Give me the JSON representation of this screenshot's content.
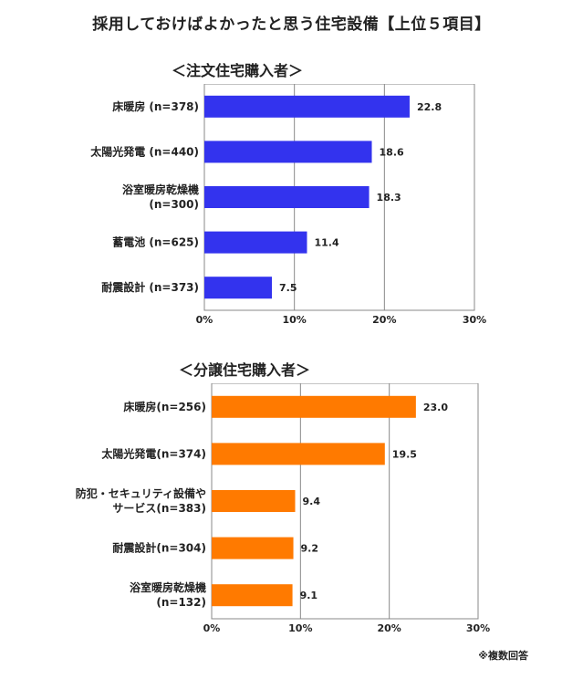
{
  "page_title": "採用しておけばよかったと思う住宅設備【上位５項目】",
  "footnote": "※複数回答",
  "chart_data": [
    {
      "type": "bar",
      "orientation": "horizontal",
      "title": "＜注文住宅購入者＞",
      "categories": [
        [
          "床暖房 (n=378)"
        ],
        [
          "太陽光発電 (n=440)"
        ],
        [
          "浴室暖房乾燥機",
          "(n=300)"
        ],
        [
          "蓄電池 (n=625)"
        ],
        [
          "耐震設計 (n=373)"
        ]
      ],
      "values": [
        22.8,
        18.6,
        18.3,
        11.4,
        7.5
      ],
      "value_labels": [
        "22.8",
        "18.6",
        "18.3",
        "11.4",
        "7.5"
      ],
      "xlim": [
        0,
        30
      ],
      "ticks": [
        0,
        10,
        20,
        30
      ],
      "tick_labels": [
        "0%",
        "10%",
        "20%",
        "30%"
      ],
      "bar_color": "#3333ee",
      "grid": true
    },
    {
      "type": "bar",
      "orientation": "horizontal",
      "title": "＜分譲住宅購入者＞",
      "categories": [
        [
          "床暖房(n=256)"
        ],
        [
          "太陽光発電(n=374)"
        ],
        [
          "防犯・セキュリティ設備や",
          "サービス(n=383)"
        ],
        [
          "耐震設計(n=304)"
        ],
        [
          "浴室暖房乾燥機",
          "(n=132)"
        ]
      ],
      "values": [
        23.0,
        19.5,
        9.4,
        9.2,
        9.1
      ],
      "value_labels": [
        "23.0",
        "19.5",
        "9.4",
        "9.2",
        "9.1"
      ],
      "xlim": [
        0,
        30
      ],
      "ticks": [
        0,
        10,
        20,
        30
      ],
      "tick_labels": [
        "0%",
        "10%",
        "20%",
        "30%"
      ],
      "bar_color": "#ff7a00",
      "grid": true
    }
  ]
}
